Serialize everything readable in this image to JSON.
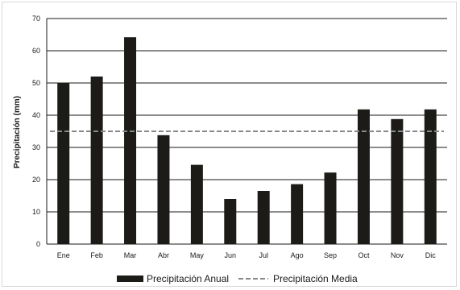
{
  "chart_data": {
    "type": "bar",
    "categories": [
      "Ene",
      "Feb",
      "Mar",
      "Abr",
      "May",
      "Jun",
      "Jul",
      "Ago",
      "Sep",
      "Oct",
      "Nov",
      "Dic"
    ],
    "series": [
      {
        "name": "Precipitación Anual",
        "type": "bar",
        "color": "#1c1b17",
        "values": [
          50,
          52,
          64.2,
          33.8,
          24.6,
          14,
          16.5,
          18.6,
          22.2,
          41.8,
          38.8,
          41.8
        ]
      },
      {
        "name": "Precipitación Media",
        "type": "line",
        "style": "dashed",
        "color": "#888888",
        "values": [
          35,
          35,
          35,
          35,
          35,
          35,
          35,
          35,
          35,
          35,
          35,
          35
        ]
      }
    ],
    "title": "",
    "xlabel": "",
    "ylabel": "Precipitación (mm)",
    "ylim": [
      0,
      70
    ],
    "yticks": [
      "0",
      "10",
      "20",
      "30",
      "40",
      "50",
      "60",
      "70"
    ],
    "grid": "horizontal",
    "legend_position": "bottom"
  }
}
